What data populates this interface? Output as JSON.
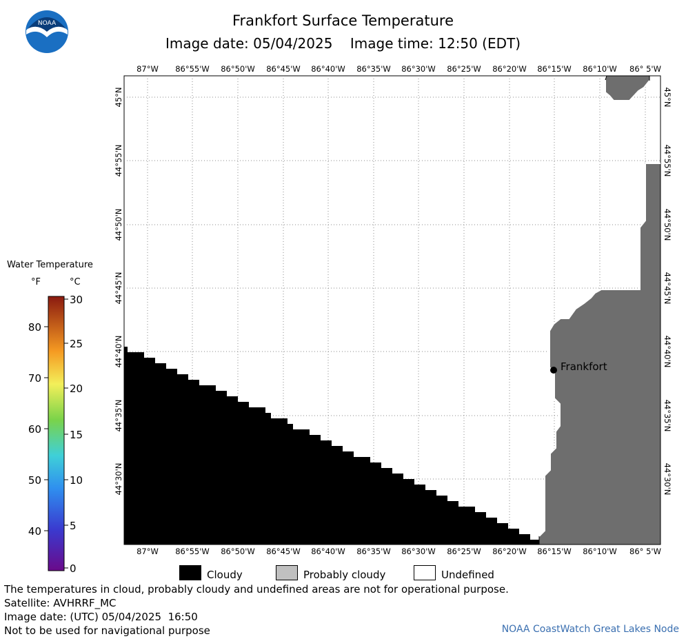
{
  "header": {
    "title": "Frankfort Surface Temperature",
    "image_date_label": "Image date: 05/04/2025",
    "image_time_label": "Image time: 12:50 (EDT)"
  },
  "logo": {
    "text": "NOAA",
    "icon": "noaa-logo-icon"
  },
  "map": {
    "lon_labels": [
      "87°W",
      "86°55'W",
      "86°50'W",
      "86°45'W",
      "86°40'W",
      "86°35'W",
      "86°30'W",
      "86°25'W",
      "86°20'W",
      "86°15'W",
      "86°10'W",
      "86° 5'W"
    ],
    "lat_labels": [
      "45°N",
      "44°55'N",
      "44°50'N",
      "44°45'N",
      "44°40'N",
      "44°35'N",
      "44°30'N"
    ],
    "place_label": "Frankfort",
    "colors": {
      "cloudy": "#000000",
      "probably_cloudy": "#6e6e6e",
      "undefined": "#ffffff",
      "grid": "#888888"
    }
  },
  "legend": {
    "title": "Water Temperature",
    "unit_f": "°F",
    "unit_c": "°C",
    "f_ticks": [
      "80",
      "70",
      "60",
      "50",
      "40"
    ],
    "c_ticks": [
      "30",
      "25",
      "20",
      "15",
      "10",
      "5",
      "0"
    ]
  },
  "key": {
    "cloudy": "Cloudy",
    "probably_cloudy": "Probably cloudy",
    "undefined": "Undefined",
    "probably_cloudy_color": "#c0c0c0"
  },
  "footer": {
    "disclaimer": "The temperatures in cloud, probably cloudy and undefined areas are not for operational purpose.",
    "satellite": "Satellite: AVHRRF_MC",
    "utc_date": "Image date: (UTC) 05/04/2025  16:50",
    "nav_note": "Not to be used for navigational purpose",
    "credit": "NOAA CoastWatch Great Lakes Node"
  }
}
